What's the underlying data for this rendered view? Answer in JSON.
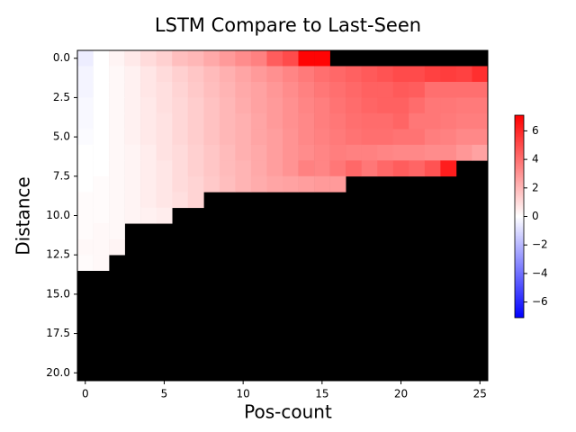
{
  "chart_data": {
    "type": "heatmap",
    "title": "LSTM Compare to Last-Seen",
    "xlabel": "Pos-count",
    "ylabel": "Distance",
    "cmap": "bwr",
    "background": "#000000",
    "x": [
      0,
      1,
      2,
      3,
      4,
      5,
      6,
      7,
      8,
      9,
      10,
      11,
      12,
      13,
      14,
      15,
      16,
      17,
      18,
      19,
      20,
      21,
      22,
      23,
      24,
      25
    ],
    "y": [
      0,
      1,
      2,
      3,
      4,
      5,
      6,
      7,
      8,
      9,
      10,
      11,
      12,
      13,
      14,
      15,
      16,
      17,
      18,
      19,
      20
    ],
    "values": [
      [
        -0.5,
        0,
        0.3,
        0.6,
        1,
        1.3,
        1.8,
        2,
        2.4,
        2.8,
        3.2,
        3.5,
        4.5,
        5,
        7,
        7,
        null,
        null,
        null,
        null,
        null,
        null,
        null,
        null,
        null,
        null
      ],
      [
        -0.3,
        0,
        0.2,
        0.4,
        0.7,
        1,
        1.3,
        1.6,
        1.9,
        2.2,
        2.5,
        2.8,
        3.1,
        3.4,
        3.7,
        4,
        4.2,
        4.4,
        4.6,
        4.8,
        5,
        5,
        5.3,
        5.4,
        5.3,
        5.8
      ],
      [
        -0.3,
        0,
        0.2,
        0.4,
        0.7,
        0.9,
        1.2,
        1.5,
        1.8,
        2.1,
        2.4,
        2.6,
        2.9,
        3.2,
        3.5,
        3.8,
        4,
        4.2,
        4.4,
        4.4,
        4.6,
        4.5,
        4,
        4,
        4,
        4
      ],
      [
        -0.2,
        0,
        0.2,
        0.4,
        0.6,
        0.9,
        1.1,
        1.4,
        1.7,
        2,
        2.3,
        2.6,
        2.8,
        3.1,
        3.4,
        3.6,
        3.9,
        4.1,
        4.3,
        4.4,
        4.4,
        4.1,
        3.8,
        3.8,
        3.7,
        3.7
      ],
      [
        -0.2,
        0,
        0.2,
        0.4,
        0.6,
        0.8,
        1.1,
        1.4,
        1.7,
        2,
        2.2,
        2.5,
        2.8,
        3.1,
        3.3,
        3.6,
        3.8,
        4,
        4.1,
        4.1,
        4.3,
        3.8,
        3.8,
        3.7,
        3.6,
        3.6
      ],
      [
        -0.1,
        0,
        0.2,
        0.4,
        0.6,
        0.8,
        1.1,
        1.4,
        1.7,
        2,
        2.2,
        2.5,
        2.7,
        3,
        3.3,
        3.5,
        3.7,
        3.9,
        4,
        4,
        3.9,
        3.9,
        3.6,
        3.5,
        3.3,
        3.3
      ],
      [
        0,
        0,
        0.2,
        0.3,
        0.5,
        0.8,
        1,
        1.3,
        1.6,
        1.9,
        2.2,
        2.4,
        2.7,
        3,
        3.2,
        3.4,
        3.6,
        3.5,
        3.5,
        3.4,
        3.3,
        3.3,
        3.2,
        3.2,
        2.9,
        2.6
      ],
      [
        0,
        0,
        0.2,
        0.3,
        0.5,
        0.7,
        1,
        1.3,
        1.6,
        1.9,
        2.1,
        2.4,
        2.7,
        3,
        3.5,
        3.4,
        3.8,
        4.2,
        3.8,
        4.2,
        4.5,
        4.3,
        4.8,
        6.3,
        null,
        null
      ],
      [
        0,
        0.1,
        0.2,
        0.3,
        0.5,
        0.7,
        1,
        1.2,
        1.5,
        1.8,
        2.1,
        2.3,
        2.5,
        2.6,
        2.7,
        2.8,
        2.8,
        null,
        null,
        null,
        null,
        null,
        null,
        null,
        null,
        null
      ],
      [
        0.1,
        0.1,
        0.2,
        0.3,
        0.5,
        0.7,
        0.9,
        1.2,
        null,
        null,
        null,
        null,
        null,
        null,
        null,
        null,
        null,
        null,
        null,
        null,
        null,
        null,
        null,
        null,
        null,
        null
      ],
      [
        0.1,
        0.1,
        0.2,
        0.3,
        0.4,
        0.5,
        null,
        null,
        null,
        null,
        null,
        null,
        null,
        null,
        null,
        null,
        null,
        null,
        null,
        null,
        null,
        null,
        null,
        null,
        null,
        null
      ],
      [
        0.1,
        0.2,
        0.2,
        null,
        null,
        null,
        null,
        null,
        null,
        null,
        null,
        null,
        null,
        null,
        null,
        null,
        null,
        null,
        null,
        null,
        null,
        null,
        null,
        null,
        null,
        null
      ],
      [
        0.2,
        0.2,
        0.3,
        null,
        null,
        null,
        null,
        null,
        null,
        null,
        null,
        null,
        null,
        null,
        null,
        null,
        null,
        null,
        null,
        null,
        null,
        null,
        null,
        null,
        null,
        null
      ],
      [
        0.1,
        0.2,
        null,
        null,
        null,
        null,
        null,
        null,
        null,
        null,
        null,
        null,
        null,
        null,
        null,
        null,
        null,
        null,
        null,
        null,
        null,
        null,
        null,
        null,
        null,
        null
      ],
      [
        null,
        null,
        null,
        null,
        null,
        null,
        null,
        null,
        null,
        null,
        null,
        null,
        null,
        null,
        null,
        null,
        null,
        null,
        null,
        null,
        null,
        null,
        null,
        null,
        null,
        null
      ],
      [
        null,
        null,
        null,
        null,
        null,
        null,
        null,
        null,
        null,
        null,
        null,
        null,
        null,
        null,
        null,
        null,
        null,
        null,
        null,
        null,
        null,
        null,
        null,
        null,
        null,
        null
      ],
      [
        null,
        null,
        null,
        null,
        null,
        null,
        null,
        null,
        null,
        null,
        null,
        null,
        null,
        null,
        null,
        null,
        null,
        null,
        null,
        null,
        null,
        null,
        null,
        null,
        null,
        null
      ],
      [
        null,
        null,
        null,
        null,
        null,
        null,
        null,
        null,
        null,
        null,
        null,
        null,
        null,
        null,
        null,
        null,
        null,
        null,
        null,
        null,
        null,
        null,
        null,
        null,
        null,
        null
      ],
      [
        null,
        null,
        null,
        null,
        null,
        null,
        null,
        null,
        null,
        null,
        null,
        null,
        null,
        null,
        null,
        null,
        null,
        null,
        null,
        null,
        null,
        null,
        null,
        null,
        null,
        null
      ],
      [
        null,
        null,
        null,
        null,
        null,
        null,
        null,
        null,
        null,
        null,
        null,
        null,
        null,
        null,
        null,
        null,
        null,
        null,
        null,
        null,
        null,
        null,
        null,
        null,
        null,
        null
      ],
      [
        null,
        null,
        null,
        null,
        null,
        null,
        null,
        null,
        null,
        null,
        null,
        null,
        null,
        null,
        null,
        null,
        null,
        null,
        null,
        null,
        null,
        null,
        null,
        null,
        null,
        null
      ]
    ],
    "xlim": [
      -0.5,
      25.5
    ],
    "ylim": [
      -0.5,
      20.5
    ],
    "y_inverted": true,
    "xticks": [
      0,
      5,
      10,
      15,
      20,
      25
    ],
    "yticks": [
      {
        "value": 0,
        "label": "0.0"
      },
      {
        "value": 2.5,
        "label": "2.5"
      },
      {
        "value": 5,
        "label": "5.0"
      },
      {
        "value": 7.5,
        "label": "7.5"
      },
      {
        "value": 10,
        "label": "10.0"
      },
      {
        "value": 12.5,
        "label": "12.5"
      },
      {
        "value": 15,
        "label": "15.0"
      },
      {
        "value": 17.5,
        "label": "17.5"
      },
      {
        "value": 20,
        "label": "20.0"
      }
    ],
    "clim": [
      -7.1,
      7.1
    ],
    "cticks": [
      {
        "value": -6,
        "label": "−6"
      },
      {
        "value": -4,
        "label": "−4"
      },
      {
        "value": -2,
        "label": "−2"
      },
      0,
      2,
      4,
      6
    ]
  }
}
